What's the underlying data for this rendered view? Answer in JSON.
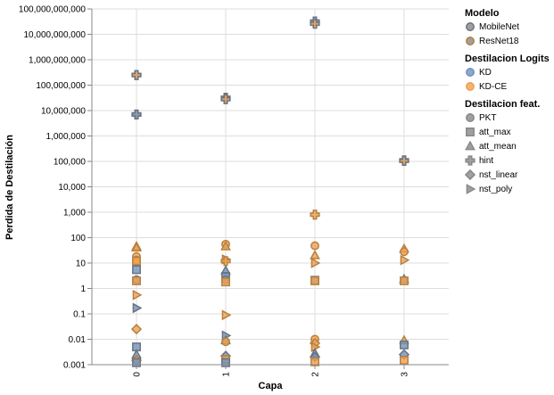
{
  "chart_data": {
    "type": "scatter",
    "title": "",
    "xlabel": "Capa",
    "ylabel": "Perdida de Destilación",
    "y_scale": "log",
    "ylim": [
      0.001,
      100000000000
    ],
    "x_categories": [
      "0",
      "1",
      "2",
      "3"
    ],
    "y_tick_labels": [
      "0.001",
      "0.01",
      "0.1",
      "1",
      "10",
      "100",
      "1,000",
      "10,000",
      "100,000",
      "1,000,000",
      "10,000,000",
      "100,000,000",
      "1,000,000,000",
      "10,000,000,000",
      "100,000,000,000"
    ],
    "grid": true,
    "legend_placement": "right",
    "legends": [
      {
        "title": "Modelo",
        "kind": "stroke",
        "items": [
          {
            "label": "MobileNet",
            "color": "#6b7280"
          },
          {
            "label": "ResNet18",
            "color": "#b5803f"
          }
        ]
      },
      {
        "title": "Destilacion Logits",
        "kind": "fill",
        "items": [
          {
            "label": "KD",
            "color": "#6f93bd"
          },
          {
            "label": "KD-CE",
            "color": "#f0a050"
          }
        ]
      },
      {
        "title": "Destilacion feat.",
        "kind": "shape",
        "items": [
          {
            "label": "PKT",
            "shape": "circle"
          },
          {
            "label": "att_max",
            "shape": "square"
          },
          {
            "label": "att_mean",
            "shape": "triangle"
          },
          {
            "label": "hint",
            "shape": "cross"
          },
          {
            "label": "nst_linear",
            "shape": "diamond"
          },
          {
            "label": "nst_poly",
            "shape": "triangle-right"
          }
        ]
      }
    ],
    "colors": {
      "KD": "#6f93bd",
      "KD-CE": "#f0a050",
      "MobileNet": "#6b7280",
      "ResNet18": "#b5803f"
    },
    "points": [
      {
        "x": "0",
        "y": 250000000,
        "model": "MobileNet",
        "logits": "KD",
        "feat": "hint"
      },
      {
        "x": "0",
        "y": 250000000,
        "model": "MobileNet",
        "logits": "KD-CE",
        "feat": "hint"
      },
      {
        "x": "0",
        "y": 7000000,
        "model": "MobileNet",
        "logits": "KD-CE",
        "feat": "hint"
      },
      {
        "x": "0",
        "y": 7000000,
        "model": "MobileNet",
        "logits": "KD",
        "feat": "hint"
      },
      {
        "x": "0",
        "y": 45,
        "model": "ResNet18",
        "logits": "KD-CE",
        "feat": "att_mean"
      },
      {
        "x": "0",
        "y": 40,
        "model": "ResNet18",
        "logits": "KD-CE",
        "feat": "att_mean"
      },
      {
        "x": "0",
        "y": 18,
        "model": "ResNet18",
        "logits": "KD-CE",
        "feat": "PKT"
      },
      {
        "x": "0",
        "y": 13,
        "model": "ResNet18",
        "logits": "KD-CE",
        "feat": "PKT"
      },
      {
        "x": "0",
        "y": 12,
        "model": "ResNet18",
        "logits": "KD-CE",
        "feat": "att_max"
      },
      {
        "x": "0",
        "y": 5.5,
        "model": "MobileNet",
        "logits": "KD",
        "feat": "att_max"
      },
      {
        "x": "0",
        "y": 2.2,
        "model": "MobileNet",
        "logits": "KD",
        "feat": "PKT"
      },
      {
        "x": "0",
        "y": 2.0,
        "model": "ResNet18",
        "logits": "KD-CE",
        "feat": "att_max"
      },
      {
        "x": "0",
        "y": 0.55,
        "model": "ResNet18",
        "logits": "KD-CE",
        "feat": "nst_poly"
      },
      {
        "x": "0",
        "y": 0.17,
        "model": "MobileNet",
        "logits": "KD",
        "feat": "nst_poly"
      },
      {
        "x": "0",
        "y": 0.025,
        "model": "ResNet18",
        "logits": "KD-CE",
        "feat": "nst_linear"
      },
      {
        "x": "0",
        "y": 0.005,
        "model": "MobileNet",
        "logits": "KD",
        "feat": "att_max"
      },
      {
        "x": "0",
        "y": 0.0025,
        "model": "MobileNet",
        "logits": "KD",
        "feat": "att_mean"
      },
      {
        "x": "0",
        "y": 0.0015,
        "model": "ResNet18",
        "logits": "KD-CE",
        "feat": "nst_linear"
      },
      {
        "x": "0",
        "y": 0.0012,
        "model": "MobileNet",
        "logits": "KD",
        "feat": "att_max"
      },
      {
        "x": "1",
        "y": 32000000,
        "model": "MobileNet",
        "logits": "KD",
        "feat": "hint"
      },
      {
        "x": "1",
        "y": 28000000,
        "model": "MobileNet",
        "logits": "KD-CE",
        "feat": "hint"
      },
      {
        "x": "1",
        "y": 55,
        "model": "ResNet18",
        "logits": "KD-CE",
        "feat": "PKT"
      },
      {
        "x": "1",
        "y": 45,
        "model": "ResNet18",
        "logits": "KD-CE",
        "feat": "att_mean"
      },
      {
        "x": "1",
        "y": 14,
        "model": "ResNet18",
        "logits": "KD-CE",
        "feat": "nst_poly"
      },
      {
        "x": "1",
        "y": 12,
        "model": "ResNet18",
        "logits": "KD-CE",
        "feat": "hint"
      },
      {
        "x": "1",
        "y": 5,
        "model": "MobileNet",
        "logits": "KD",
        "feat": "att_mean"
      },
      {
        "x": "1",
        "y": 3,
        "model": "MobileNet",
        "logits": "KD",
        "feat": "att_max"
      },
      {
        "x": "1",
        "y": 2.2,
        "model": "MobileNet",
        "logits": "KD",
        "feat": "PKT"
      },
      {
        "x": "1",
        "y": 1.8,
        "model": "ResNet18",
        "logits": "KD-CE",
        "feat": "att_max"
      },
      {
        "x": "1",
        "y": 0.09,
        "model": "ResNet18",
        "logits": "KD-CE",
        "feat": "nst_poly"
      },
      {
        "x": "1",
        "y": 0.014,
        "model": "MobileNet",
        "logits": "KD",
        "feat": "nst_poly"
      },
      {
        "x": "1",
        "y": 0.009,
        "model": "MobileNet",
        "logits": "KD",
        "feat": "att_mean"
      },
      {
        "x": "1",
        "y": 0.008,
        "model": "ResNet18",
        "logits": "KD-CE",
        "feat": "PKT"
      },
      {
        "x": "1",
        "y": 0.0022,
        "model": "MobileNet",
        "logits": "KD",
        "feat": "nst_linear"
      },
      {
        "x": "1",
        "y": 0.0016,
        "model": "ResNet18",
        "logits": "KD-CE",
        "feat": "att_max"
      },
      {
        "x": "1",
        "y": 0.0012,
        "model": "MobileNet",
        "logits": "KD",
        "feat": "att_max"
      },
      {
        "x": "2",
        "y": 32000000000,
        "model": "MobileNet",
        "logits": "KD",
        "feat": "hint"
      },
      {
        "x": "2",
        "y": 26000000000,
        "model": "MobileNet",
        "logits": "KD-CE",
        "feat": "hint"
      },
      {
        "x": "2",
        "y": 800,
        "model": "ResNet18",
        "logits": "KD-CE",
        "feat": "hint"
      },
      {
        "x": "2",
        "y": 48,
        "model": "ResNet18",
        "logits": "KD-CE",
        "feat": "PKT"
      },
      {
        "x": "2",
        "y": 20,
        "model": "ResNet18",
        "logits": "KD-CE",
        "feat": "att_mean"
      },
      {
        "x": "2",
        "y": 10,
        "model": "ResNet18",
        "logits": "KD-CE",
        "feat": "nst_poly"
      },
      {
        "x": "2",
        "y": 2.1,
        "model": "MobileNet",
        "logits": "KD",
        "feat": "att_max"
      },
      {
        "x": "2",
        "y": 2.0,
        "model": "ResNet18",
        "logits": "KD-CE",
        "feat": "att_max"
      },
      {
        "x": "2",
        "y": 0.01,
        "model": "ResNet18",
        "logits": "KD-CE",
        "feat": "PKT"
      },
      {
        "x": "2",
        "y": 0.007,
        "model": "ResNet18",
        "logits": "KD-CE",
        "feat": "nst_linear"
      },
      {
        "x": "2",
        "y": 0.005,
        "model": "ResNet18",
        "logits": "KD-CE",
        "feat": "nst_poly"
      },
      {
        "x": "2",
        "y": 0.0028,
        "model": "MobileNet",
        "logits": "KD",
        "feat": "att_mean"
      },
      {
        "x": "2",
        "y": 0.002,
        "model": "MobileNet",
        "logits": "KD",
        "feat": "nst_linear"
      },
      {
        "x": "2",
        "y": 0.0013,
        "model": "ResNet18",
        "logits": "KD-CE",
        "feat": "att_max"
      },
      {
        "x": "3",
        "y": 110000,
        "model": "MobileNet",
        "logits": "KD",
        "feat": "hint"
      },
      {
        "x": "3",
        "y": 105000,
        "model": "MobileNet",
        "logits": "KD-CE",
        "feat": "hint"
      },
      {
        "x": "3",
        "y": 36,
        "model": "ResNet18",
        "logits": "KD-CE",
        "feat": "att_mean"
      },
      {
        "x": "3",
        "y": 28,
        "model": "ResNet18",
        "logits": "KD-CE",
        "feat": "PKT"
      },
      {
        "x": "3",
        "y": 13,
        "model": "ResNet18",
        "logits": "KD-CE",
        "feat": "nst_poly"
      },
      {
        "x": "3",
        "y": 2.3,
        "model": "MobileNet",
        "logits": "KD",
        "feat": "att_mean"
      },
      {
        "x": "3",
        "y": 2.0,
        "model": "ResNet18",
        "logits": "KD-CE",
        "feat": "att_max"
      },
      {
        "x": "3",
        "y": 0.009,
        "model": "ResNet18",
        "logits": "KD-CE",
        "feat": "att_mean"
      },
      {
        "x": "3",
        "y": 0.006,
        "model": "MobileNet",
        "logits": "KD",
        "feat": "att_max"
      },
      {
        "x": "3",
        "y": 0.0025,
        "model": "MobileNet",
        "logits": "KD",
        "feat": "nst_linear"
      },
      {
        "x": "3",
        "y": 0.0015,
        "model": "ResNet18",
        "logits": "KD-CE",
        "feat": "att_max"
      }
    ]
  }
}
